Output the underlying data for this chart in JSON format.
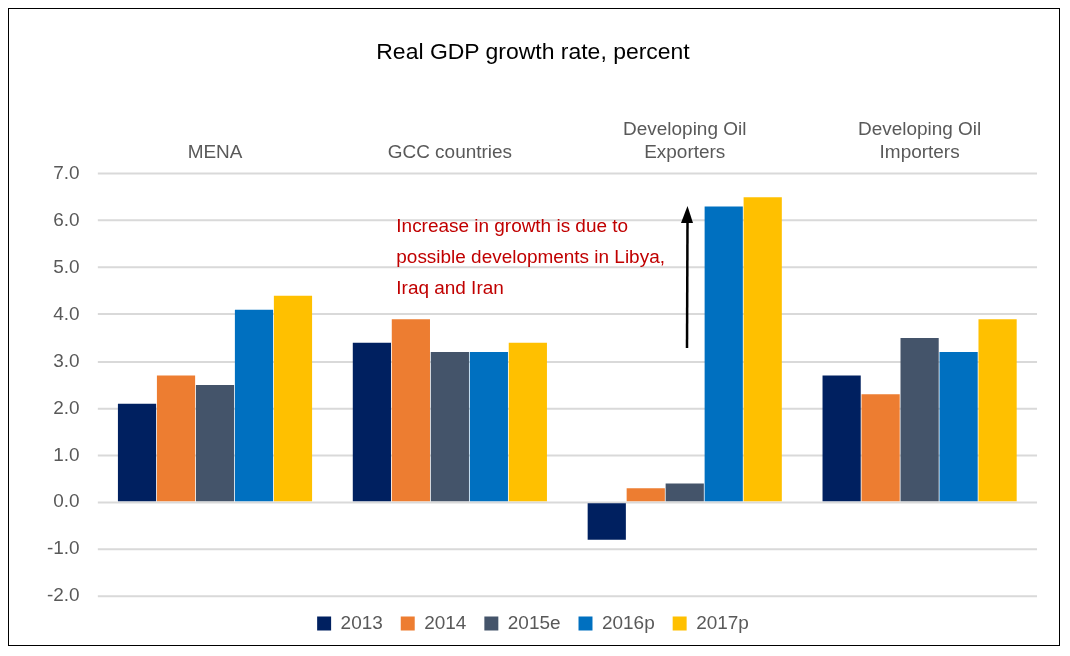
{
  "chart_data": {
    "type": "bar",
    "title": "Real GDP growth rate, percent",
    "categories": [
      "MENA",
      "GCC countries",
      "Developing Oil Exporters",
      "Developing Oil Importers"
    ],
    "series": [
      {
        "name": "2013",
        "color": "#002060",
        "values": [
          2.1,
          3.4,
          -0.8,
          2.7
        ]
      },
      {
        "name": "2014",
        "color": "#ed7d31",
        "values": [
          2.7,
          3.9,
          0.3,
          2.3
        ]
      },
      {
        "name": "2015e",
        "color": "#44546a",
        "values": [
          2.5,
          3.2,
          0.4,
          3.5
        ]
      },
      {
        "name": "2016p",
        "color": "#0070c0",
        "values": [
          4.1,
          3.2,
          6.3,
          3.2
        ]
      },
      {
        "name": "2017p",
        "color": "#ffc000",
        "values": [
          4.4,
          3.4,
          6.5,
          3.9
        ]
      }
    ],
    "ylim": [
      -2,
      7
    ],
    "yticks": [
      {
        "value": -2,
        "label": "-2.0"
      },
      {
        "value": -1,
        "label": "-1.0"
      },
      {
        "value": 0,
        "label": "0.0"
      },
      {
        "value": 1,
        "label": "1.0"
      },
      {
        "value": 2,
        "label": "2.0"
      },
      {
        "value": 3,
        "label": "3.0"
      },
      {
        "value": 4,
        "label": "4.0"
      },
      {
        "value": 5,
        "label": "5.0"
      },
      {
        "value": 6,
        "label": "6.0"
      },
      {
        "value": 7,
        "label": "7.0"
      }
    ],
    "grid": "y",
    "legend": "bottom",
    "annotations": [
      "Increase in growth is due to possible developments in Libya, Iraq and Iran"
    ]
  }
}
